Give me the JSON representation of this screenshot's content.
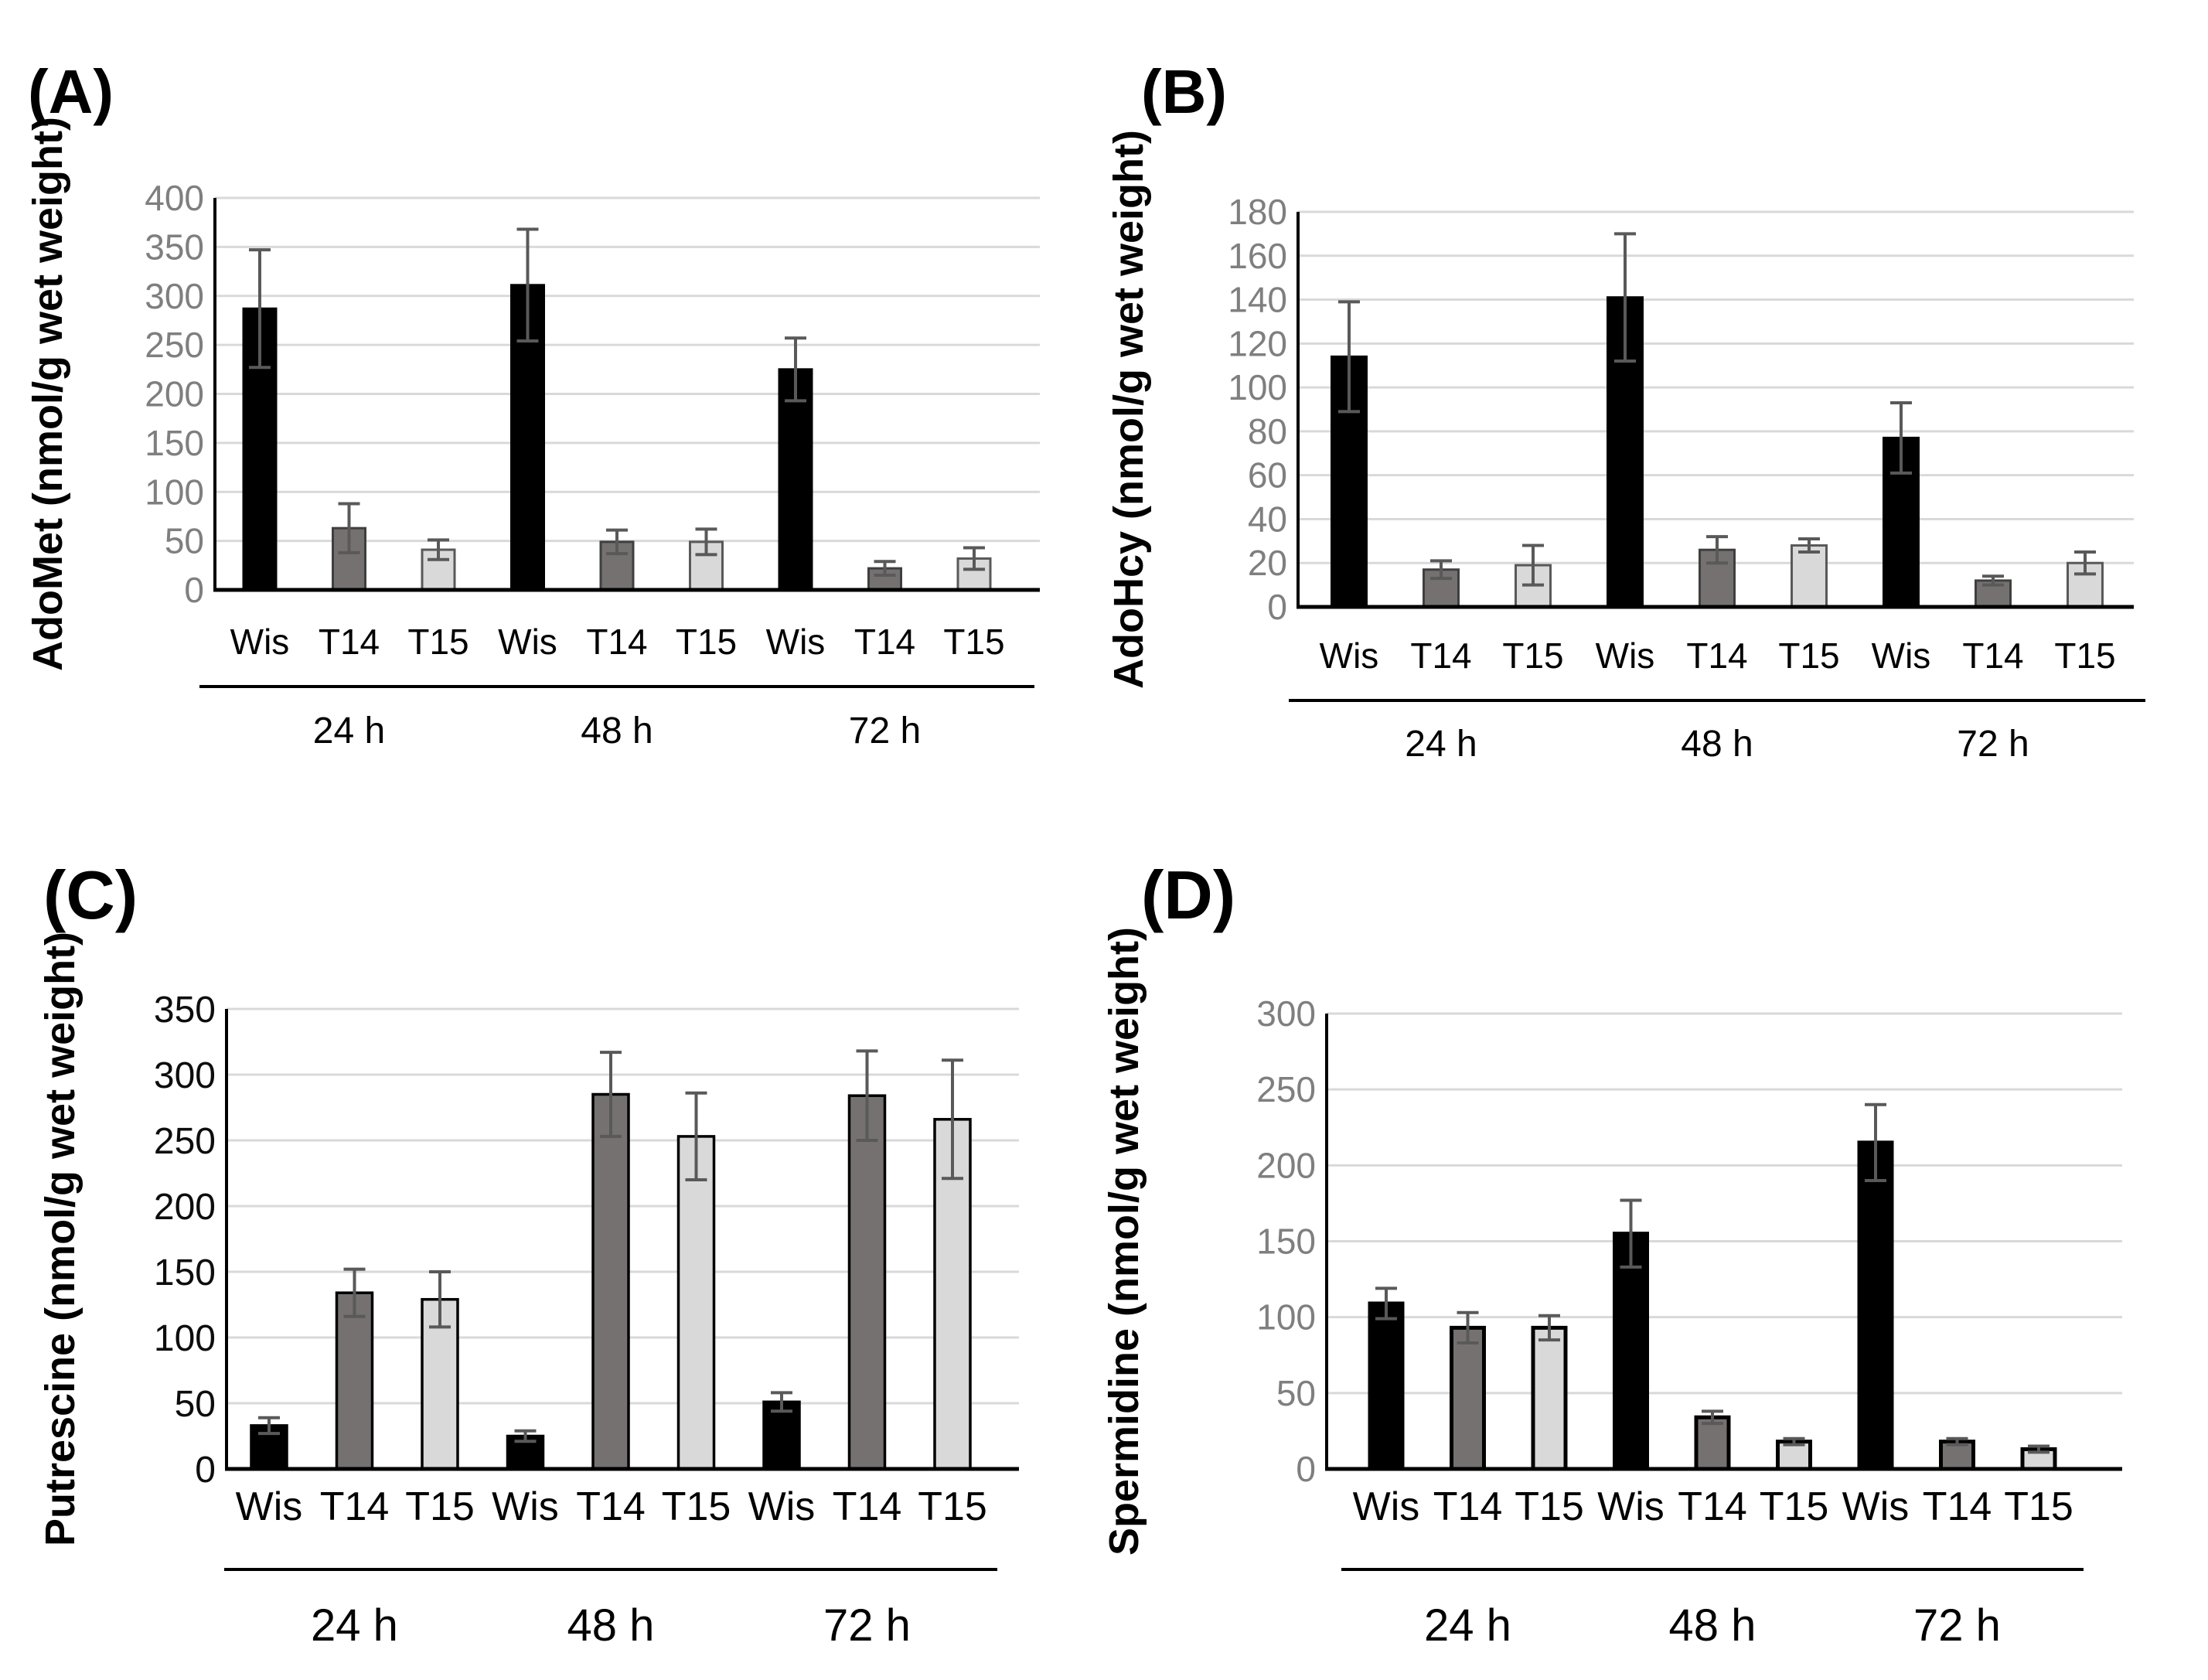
{
  "figure_title": "",
  "styles": {
    "background": "#ffffff",
    "bar_colors": {
      "Wis": "#000000",
      "T14": "#767171",
      "T15": "#d9d9d9"
    },
    "bar_border_colors": {
      "Wis": "#000000",
      "T14": "#3f3f3f",
      "T15": "#595959"
    },
    "bar_border_colors_bold_panels": {
      "Wis": "#000000",
      "T14": "#000000",
      "T15": "#000000"
    },
    "error_bar_color": "#595959",
    "gridline_color": "#d9d9d9",
    "axis_color": "#000000",
    "gray_tick_label_color": "#7f7f7f",
    "black_tick_label_color": "#0d0d0d",
    "text_color": "#000000"
  },
  "chart_data": [
    {
      "panel_letter": "(A)",
      "type": "bar",
      "title": "",
      "xlabel": "",
      "ylabel": "AdoMet (nmol/g wet weight)",
      "ylim": [
        0,
        400
      ],
      "ytick_step": 50,
      "ytick_labels": [
        "0",
        "50",
        "100",
        "150",
        "200",
        "250",
        "300",
        "350",
        "400"
      ],
      "tick_style": "gray",
      "grid": true,
      "legend": "none",
      "categories": [
        "Wis",
        "T14",
        "T15"
      ],
      "group_labels": [
        "24 h",
        "48 h",
        "72 h"
      ],
      "series": [
        {
          "group": "24 h",
          "values": [
            287,
            63,
            41
          ],
          "errors": [
            60,
            25,
            10
          ]
        },
        {
          "group": "48 h",
          "values": [
            311,
            49,
            49
          ],
          "errors": [
            57,
            12,
            13
          ]
        },
        {
          "group": "72 h",
          "values": [
            225,
            22,
            32
          ],
          "errors": [
            32,
            7,
            11
          ]
        }
      ]
    },
    {
      "panel_letter": "(B)",
      "type": "bar",
      "title": "",
      "xlabel": "",
      "ylabel": "AdoHcy (nmol/g wet weight)",
      "ylim": [
        0,
        180
      ],
      "ytick_step": 20,
      "ytick_labels": [
        "0",
        "20",
        "40",
        "60",
        "80",
        "100",
        "120",
        "140",
        "160",
        "180"
      ],
      "tick_style": "gray",
      "grid": true,
      "legend": "none",
      "categories": [
        "Wis",
        "T14",
        "T15"
      ],
      "group_labels": [
        "24 h",
        "48 h",
        "72 h"
      ],
      "series": [
        {
          "group": "24 h",
          "values": [
            114,
            17,
            19
          ],
          "errors": [
            25,
            4,
            9
          ]
        },
        {
          "group": "48 h",
          "values": [
            141,
            26,
            28
          ],
          "errors": [
            29,
            6,
            3
          ]
        },
        {
          "group": "72 h",
          "values": [
            77,
            12,
            20
          ],
          "errors": [
            16,
            2,
            5
          ]
        }
      ]
    },
    {
      "panel_letter": "(C)",
      "type": "bar",
      "title": "",
      "xlabel": "",
      "ylabel": "Putrescine (nmol/g wet weight)",
      "ylim": [
        0,
        350
      ],
      "ytick_step": 50,
      "ytick_labels": [
        "0",
        "50",
        "100",
        "150",
        "200",
        "250",
        "300",
        "350"
      ],
      "tick_style": "black",
      "grid": true,
      "legend": "none",
      "categories": [
        "Wis",
        "T14",
        "T15"
      ],
      "group_labels": [
        "24 h",
        "48 h",
        "72 h"
      ],
      "series": [
        {
          "group": "24 h",
          "values": [
            33,
            134,
            129
          ],
          "errors": [
            6,
            18,
            21
          ]
        },
        {
          "group": "48 h",
          "values": [
            25,
            285,
            253
          ],
          "errors": [
            4,
            32,
            33
          ]
        },
        {
          "group": "72 h",
          "values": [
            51,
            284,
            266
          ],
          "errors": [
            7,
            34,
            45
          ]
        }
      ]
    },
    {
      "panel_letter": "(D)",
      "type": "bar",
      "title": "",
      "xlabel": "",
      "ylabel": "Spermidine (nmol/g wet weight)",
      "ylim": [
        0,
        300
      ],
      "ytick_step": 50,
      "ytick_labels": [
        "0",
        "50",
        "100",
        "150",
        "200",
        "250",
        "300"
      ],
      "tick_style": "gray",
      "grid": true,
      "legend": "none",
      "categories": [
        "Wis",
        "T14",
        "T15"
      ],
      "group_labels": [
        "24 h",
        "48 h",
        "72 h"
      ],
      "series": [
        {
          "group": "24 h",
          "values": [
            109,
            93,
            93
          ],
          "errors": [
            10,
            10,
            8
          ]
        },
        {
          "group": "48 h",
          "values": [
            155,
            34,
            18
          ],
          "errors": [
            22,
            4,
            2
          ]
        },
        {
          "group": "72 h",
          "values": [
            215,
            18,
            13
          ],
          "errors": [
            25,
            2,
            2
          ]
        }
      ]
    }
  ]
}
